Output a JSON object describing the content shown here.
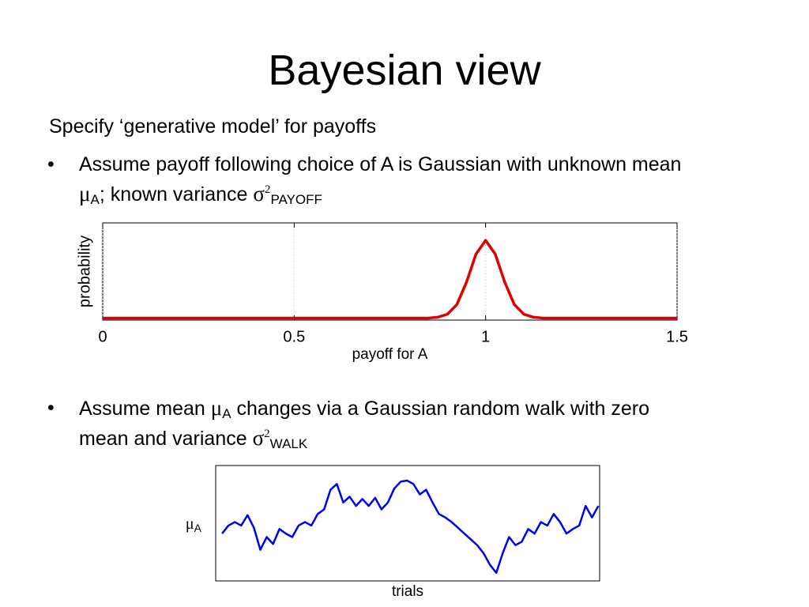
{
  "title": "Bayesian view",
  "intro": "Specify ‘generative model’ for payoffs",
  "bullets": [
    {
      "text": "Assume payoff following choice of A is Gaussian with unknown mean ",
      "mu": "μ",
      "mu_sub": "A",
      "mid": "; known variance ",
      "sigma": "σ",
      "sup": "2",
      "sub": "PAYOFF"
    },
    {
      "text": "Assume mean ",
      "mu": "μ",
      "mu_sub": "A",
      "mid": " changes via a Gaussian random walk with zero mean and variance ",
      "sigma": "σ",
      "sup": "2",
      "sub": "WALK"
    }
  ],
  "chart_data": [
    {
      "type": "line",
      "x_label": "payoff for A",
      "y_label": "probability",
      "color": "#e00000",
      "grid": true,
      "x": [
        0,
        0.25,
        0.5,
        0.75,
        0.8,
        0.85,
        0.875,
        0.9,
        0.925,
        0.95,
        0.975,
        1,
        1.025,
        1.05,
        1.075,
        1.1,
        1.125,
        1.15,
        1.2,
        1.25,
        1.5
      ],
      "values": [
        0.02,
        0.02,
        0.02,
        0.02,
        0.02,
        0.02,
        0.03,
        0.06,
        0.16,
        0.39,
        0.68,
        0.82,
        0.68,
        0.39,
        0.16,
        0.06,
        0.03,
        0.02,
        0.02,
        0.02,
        0.02
      ],
      "xlim": [
        0,
        1.5
      ],
      "ylim": [
        0,
        1
      ],
      "xticks": [
        0,
        0.5,
        1,
        1.5
      ]
    },
    {
      "type": "line",
      "x_label": "trials",
      "y_label": {
        "text": "μ",
        "sub": "A"
      },
      "color": "#0000ee",
      "grid": false,
      "x": [
        1,
        2,
        3,
        4,
        5,
        6,
        7,
        8,
        9,
        10,
        11,
        12,
        13,
        14,
        15,
        16,
        17,
        18,
        19,
        20,
        21,
        22,
        23,
        24,
        25,
        26,
        27,
        28,
        29,
        30,
        31,
        32,
        33,
        34,
        35,
        36,
        37,
        38,
        39,
        40,
        41,
        42,
        43,
        44,
        45,
        46,
        47,
        48,
        49,
        50,
        51,
        52,
        53,
        54,
        55,
        56,
        57,
        58,
        59,
        60
      ],
      "values": [
        0.41,
        0.48,
        0.51,
        0.48,
        0.57,
        0.46,
        0.27,
        0.38,
        0.32,
        0.45,
        0.41,
        0.38,
        0.48,
        0.51,
        0.48,
        0.58,
        0.62,
        0.79,
        0.84,
        0.68,
        0.73,
        0.65,
        0.71,
        0.65,
        0.72,
        0.62,
        0.68,
        0.8,
        0.86,
        0.87,
        0.84,
        0.75,
        0.79,
        0.68,
        0.58,
        0.55,
        0.51,
        0.46,
        0.41,
        0.36,
        0.31,
        0.24,
        0.14,
        0.07,
        0.24,
        0.38,
        0.31,
        0.34,
        0.45,
        0.41,
        0.51,
        0.48,
        0.58,
        0.51,
        0.41,
        0.45,
        0.48,
        0.65,
        0.55,
        0.65
      ],
      "xlim": [
        0,
        60.2
      ],
      "ylim": [
        0,
        1
      ]
    }
  ]
}
